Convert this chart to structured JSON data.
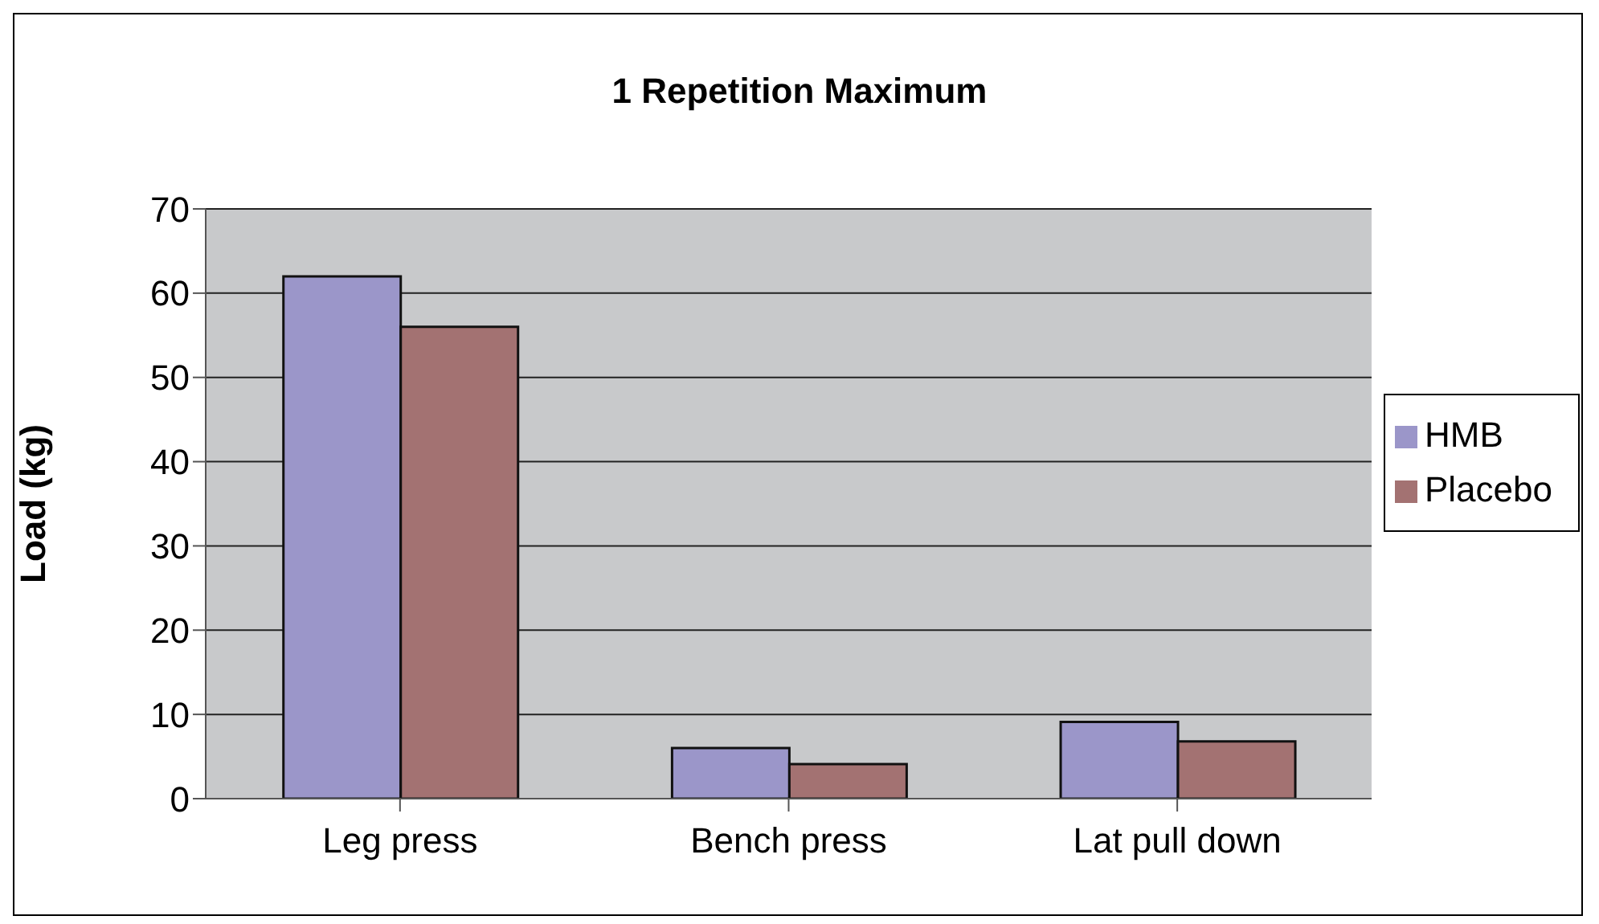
{
  "chart_data": {
    "type": "bar",
    "title": "1 Repetition Maximum",
    "ylabel": "Load (kg)",
    "categories": [
      "Leg press",
      "Bench press",
      "Lat pull down"
    ],
    "series": [
      {
        "name": "HMB",
        "color": "#9b96c9",
        "values": [
          62,
          6,
          9.1
        ]
      },
      {
        "name": "Placebo",
        "color": "#a37272",
        "values": [
          56,
          4.1,
          6.8
        ]
      }
    ],
    "ylim": [
      0,
      70
    ],
    "yticks": [
      0,
      10,
      20,
      30,
      40,
      50,
      60,
      70
    ],
    "grid": "y",
    "legend": "right"
  }
}
